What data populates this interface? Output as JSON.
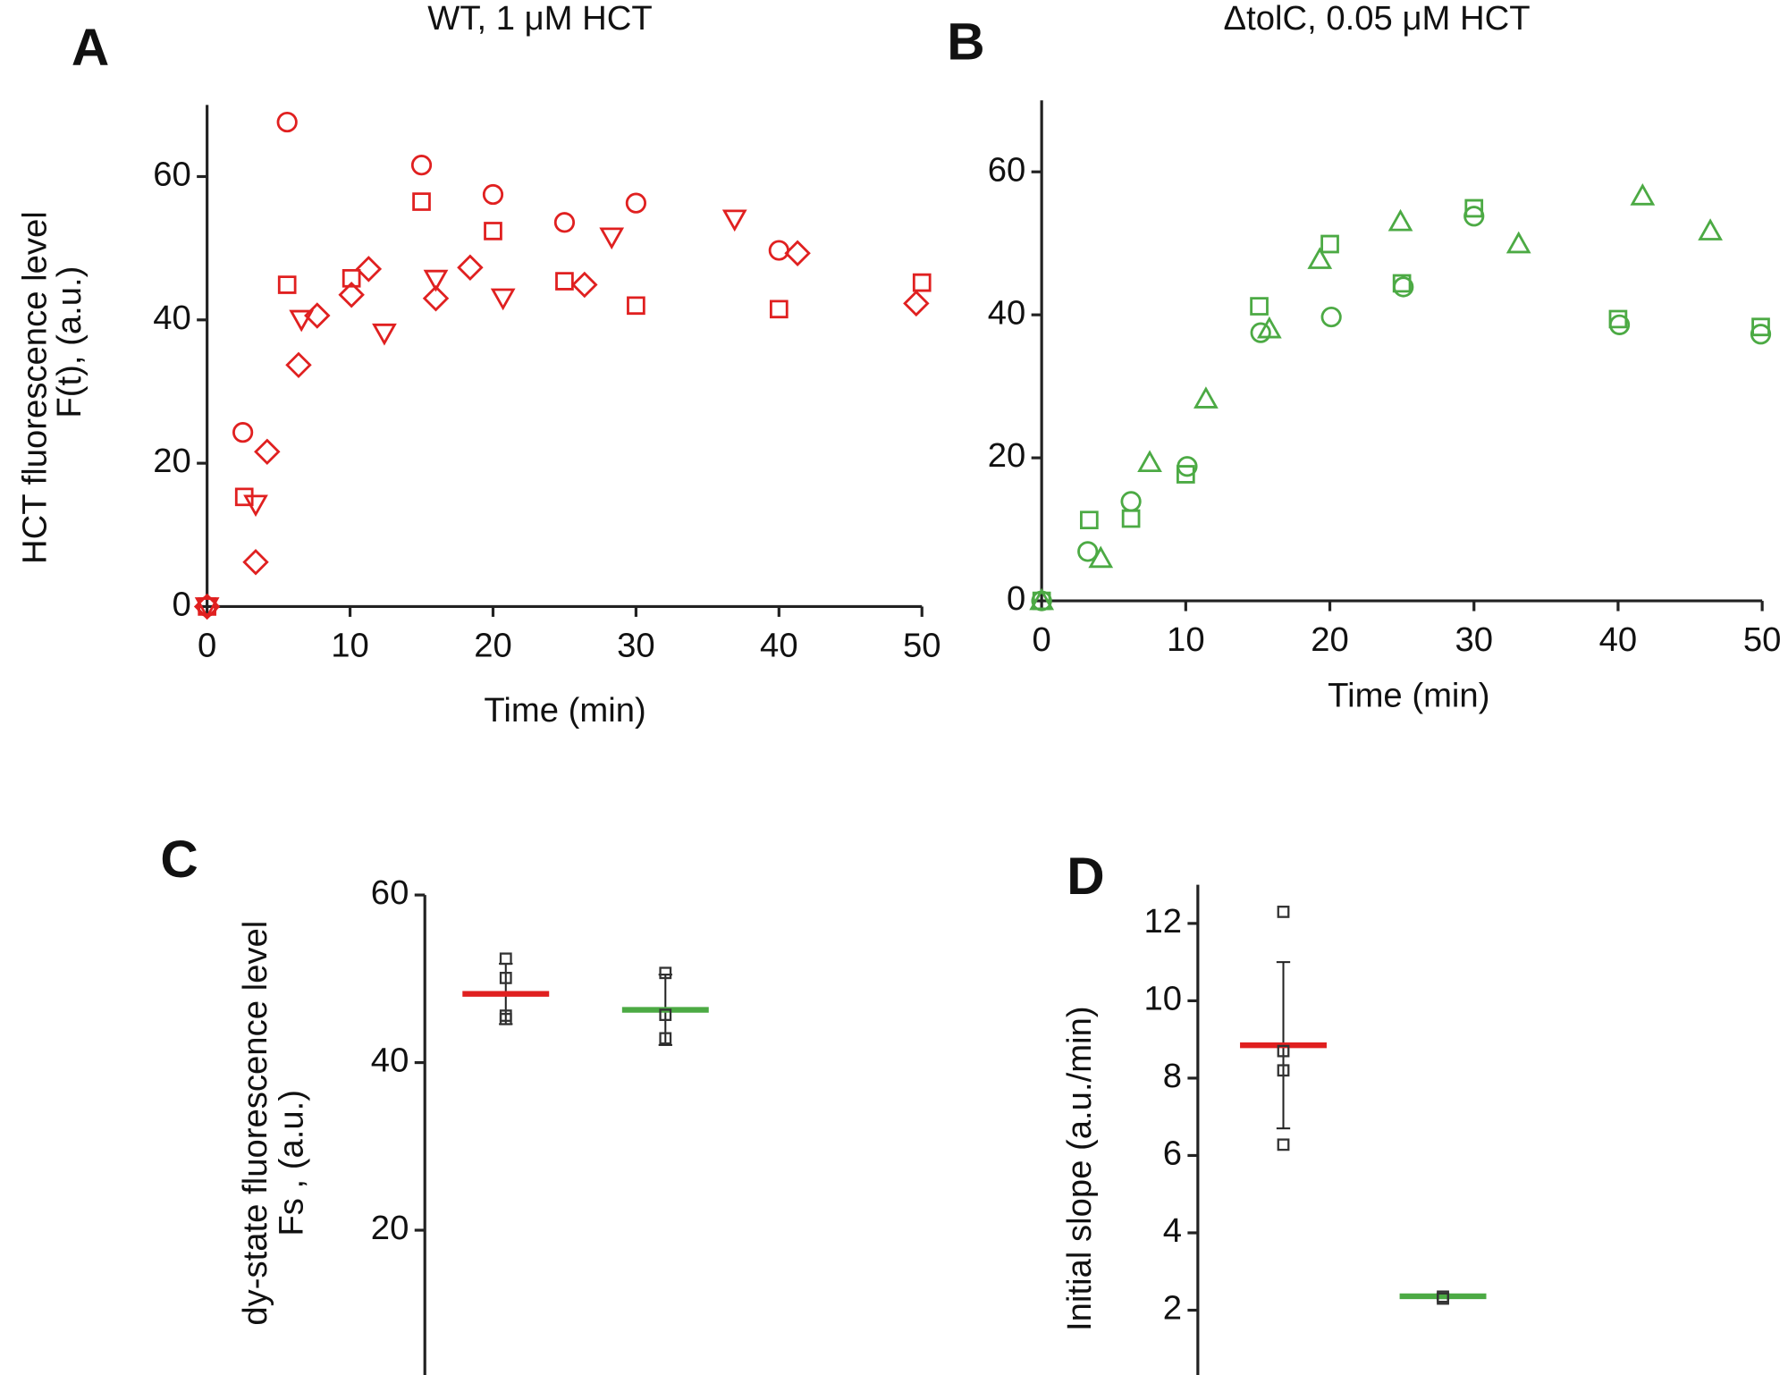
{
  "chart_data": [
    {
      "type": "scatter",
      "panel": "A",
      "title": "WT, 1 μM HCT",
      "xlabel": "Time (min)",
      "ylabel": [
        "HCT fluorescence level",
        "F(t),  (a.u.)"
      ],
      "xlim": [
        0,
        50
      ],
      "ylim": [
        0,
        70
      ],
      "xticks": [
        0,
        10,
        20,
        30,
        40,
        50
      ],
      "yticks": [
        0,
        20,
        40,
        60
      ],
      "series": [
        {
          "color": "#e02020",
          "marker": "circle",
          "x": [
            0,
            2.5,
            5.6,
            15,
            20,
            25,
            30,
            40
          ],
          "values": [
            0,
            24.3,
            67.6,
            61.6,
            57.5,
            53.6,
            56.3,
            49.7
          ]
        },
        {
          "color": "#e02020",
          "marker": "square",
          "x": [
            0,
            2.6,
            5.6,
            10.1,
            15,
            20,
            25,
            30,
            40,
            50
          ],
          "values": [
            0,
            15.3,
            44.9,
            45.8,
            56.5,
            52.4,
            45.4,
            42,
            41.5,
            45.2
          ]
        },
        {
          "color": "#e02020",
          "marker": "triangle-down",
          "x": [
            0,
            3.4,
            6.6,
            12.4,
            16,
            20.7,
            28.3,
            36.9
          ],
          "values": [
            0,
            14.3,
            40.1,
            38.2,
            45.7,
            43.1,
            51.6,
            54.1
          ]
        },
        {
          "color": "#e02020",
          "marker": "diamond",
          "x": [
            0,
            3.4,
            4.2,
            6.4,
            7.7,
            10.1,
            11.3,
            16,
            18.4,
            26.4,
            41.3,
            49.6
          ],
          "values": [
            0,
            6.2,
            21.6,
            33.7,
            40.6,
            43.5,
            47.1,
            43,
            47.3,
            44.9,
            49.3,
            42.3
          ]
        }
      ]
    },
    {
      "type": "scatter",
      "panel": "B",
      "title": "ΔtolC, 0.05 μM HCT",
      "xlabel": "Time (min)",
      "xlim": [
        0,
        50
      ],
      "ylim": [
        0,
        70
      ],
      "xticks": [
        0,
        10,
        20,
        30,
        40,
        50
      ],
      "yticks": [
        0,
        20,
        40,
        60
      ],
      "series": [
        {
          "color": "#4caa44",
          "marker": "circle",
          "x": [
            0,
            3.2,
            6.2,
            10.1,
            15.2,
            20.1,
            25.1,
            30,
            40.1,
            49.9
          ],
          "values": [
            0,
            6.9,
            13.9,
            18.8,
            37.5,
            39.7,
            43.9,
            53.8,
            38.6,
            37.3
          ]
        },
        {
          "color": "#4caa44",
          "marker": "square",
          "x": [
            0,
            3.3,
            6.2,
            10,
            15.1,
            20,
            25,
            30,
            40,
            49.9
          ],
          "values": [
            0,
            11.3,
            11.5,
            17.7,
            41.2,
            49.9,
            44.4,
            54.9,
            39.4,
            38.3
          ]
        },
        {
          "color": "#4caa44",
          "marker": "triangle-up",
          "x": [
            0,
            4.1,
            7.5,
            11.4,
            15.8,
            19.3,
            24.9,
            33.1,
            41.7,
            46.4
          ],
          "values": [
            0,
            5.9,
            19.3,
            28.2,
            38,
            47.7,
            53,
            49.9,
            56.6,
            51.7
          ]
        }
      ]
    },
    {
      "type": "dot",
      "panel": "C",
      "ylabel": [
        "dy-state fluorescence level",
        "Fs , (a.u.)"
      ],
      "ylim": [
        0,
        60
      ],
      "yticks": [
        20,
        40,
        60
      ],
      "groups": [
        {
          "color": "#e02020",
          "mean": 48.2,
          "error": 3.6,
          "values": [
            52.4,
            50.1,
            45.6,
            45.2
          ]
        },
        {
          "color": "#4caa44",
          "mean": 46.3,
          "error": 4.2,
          "values": [
            50.7,
            45.7,
            42.9
          ]
        }
      ]
    },
    {
      "type": "dot",
      "panel": "D",
      "ylabel": [
        "Initial slope (a.u./min)"
      ],
      "ylim": [
        0,
        13
      ],
      "yticks": [
        2,
        4,
        6,
        8,
        10,
        12
      ],
      "groups": [
        {
          "color": "#e02020",
          "mean": 8.85,
          "error": 2.15,
          "values": [
            12.3,
            8.7,
            8.2,
            6.28
          ]
        },
        {
          "color": "#4caa44",
          "mean": 2.36,
          "error": 0.05,
          "values": [
            2.3,
            2.35
          ]
        }
      ]
    }
  ]
}
